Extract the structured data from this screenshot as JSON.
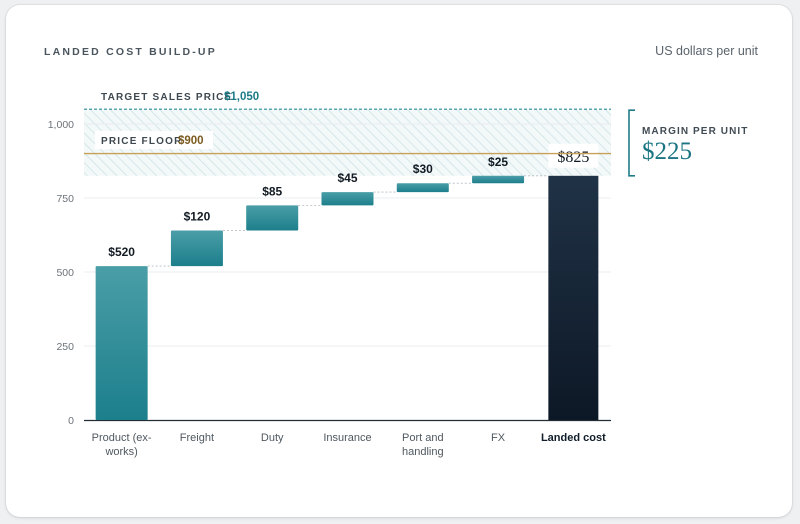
{
  "header": {
    "title": "LANDED COST BUILD-UP",
    "unit": "US dollars per unit"
  },
  "chart_data": {
    "type": "waterfall",
    "ylim": [
      0,
      1100
    ],
    "yticks": [
      0,
      250,
      500,
      750,
      1000
    ],
    "ytick_labels": [
      "0",
      "250",
      "500",
      "750",
      "1,000"
    ],
    "steps": [
      {
        "category": [
          "Product (ex-",
          "works)"
        ],
        "value": 520,
        "label": "$520"
      },
      {
        "category": [
          "Freight"
        ],
        "value": 120,
        "label": "$120"
      },
      {
        "category": [
          "Duty"
        ],
        "value": 85,
        "label": "$85"
      },
      {
        "category": [
          "Insurance"
        ],
        "value": 45,
        "label": "$45"
      },
      {
        "category": [
          "Port and",
          "handling"
        ],
        "value": 30,
        "label": "$30"
      },
      {
        "category": [
          "FX"
        ],
        "value": 25,
        "label": "$25"
      }
    ],
    "total": {
      "category": [
        "Landed cost"
      ],
      "value": 825,
      "label": "$825"
    },
    "reference_lines": {
      "target": {
        "label": "TARGET SALES PRICE",
        "value": 1050,
        "value_label": "$1,050"
      },
      "floor": {
        "label": "PRICE FLOOR",
        "value": 900,
        "value_label": "$900"
      }
    },
    "margin": {
      "label": "MARGIN PER UNIT",
      "value": 225,
      "value_label": "$225"
    },
    "colors": {
      "step_top": "#4a9ea7",
      "step_bottom": "#1c7f8c",
      "total_top": "#203246",
      "total_bottom": "#0d1826",
      "target_line": "#2a8a96",
      "floor_line": "#c9a05a",
      "margin_bracket": "#1f7d89",
      "band_hatch": "#cfe3e6"
    }
  }
}
